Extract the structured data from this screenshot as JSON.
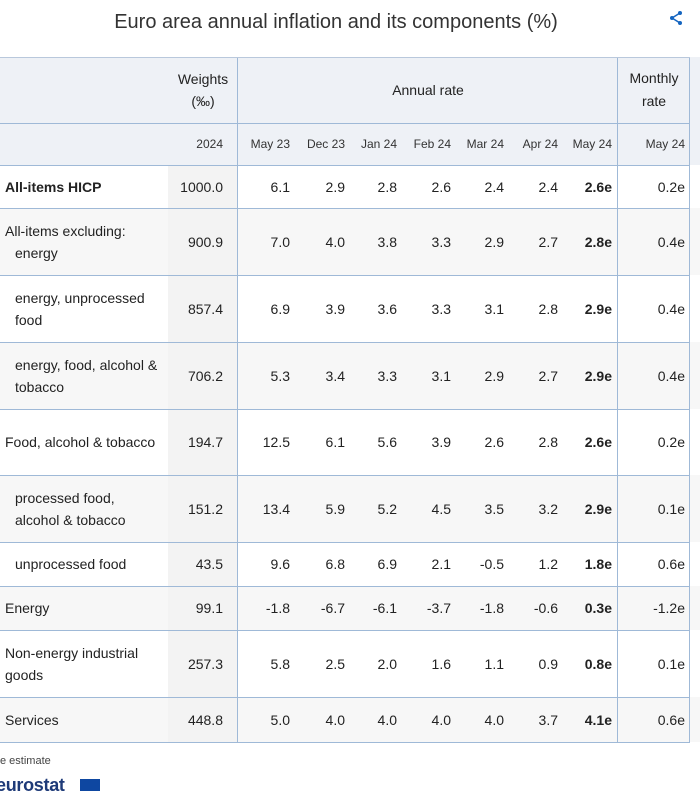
{
  "title": "Euro area annual inflation and its components (%)",
  "icons": {
    "share": "share-icon"
  },
  "colors": {
    "header_bg": "#eef1f6",
    "weights_bg": "#f3f3f3",
    "stripe_bg": "#f7f7f7",
    "border": "#9fb9d7",
    "text": "#222222"
  },
  "header": {
    "weights_label": "Weights",
    "weights_unit": "(‰)",
    "annual_rate_label": "Annual rate",
    "monthly_label": "Monthly",
    "monthly_label2": "rate",
    "weights_year": "2024",
    "annual_columns": [
      "May 23",
      "Dec 23",
      "Jan 24",
      "Feb 24",
      "Mar 24",
      "Apr 24",
      "May 24"
    ],
    "monthly_column": "May 24"
  },
  "footnote": "e estimate",
  "logo_text": "eurostat",
  "chart_data": {
    "type": "table",
    "title": "Euro area annual inflation and its components (%)",
    "columns": [
      "Weights (‰) 2024",
      "May 23",
      "Dec 23",
      "Jan 24",
      "Feb 24",
      "Mar 24",
      "Apr 24",
      "May 24",
      "Monthly rate May 24"
    ],
    "rows": [
      {
        "label": "All-items HICP",
        "weight": "1000.0",
        "annual": [
          "6.1",
          "2.9",
          "2.8",
          "2.6",
          "2.4",
          "2.4",
          "2.6e"
        ],
        "monthly": "0.2e"
      },
      {
        "label": "All-items excluding: energy",
        "weight": "900.9",
        "annual": [
          "7.0",
          "4.0",
          "3.8",
          "3.3",
          "2.9",
          "2.7",
          "2.8e"
        ],
        "monthly": "0.4e"
      },
      {
        "label": "energy, unprocessed food",
        "weight": "857.4",
        "annual": [
          "6.9",
          "3.9",
          "3.6",
          "3.3",
          "3.1",
          "2.8",
          "2.9e"
        ],
        "monthly": "0.4e"
      },
      {
        "label": "energy, food, alcohol & tobacco",
        "weight": "706.2",
        "annual": [
          "5.3",
          "3.4",
          "3.3",
          "3.1",
          "2.9",
          "2.7",
          "2.9e"
        ],
        "monthly": "0.4e"
      },
      {
        "label": "Food, alcohol & tobacco",
        "weight": "194.7",
        "annual": [
          "12.5",
          "6.1",
          "5.6",
          "3.9",
          "2.6",
          "2.8",
          "2.6e"
        ],
        "monthly": "0.2e"
      },
      {
        "label": "processed food, alcohol & tobacco",
        "weight": "151.2",
        "annual": [
          "13.4",
          "5.9",
          "5.2",
          "4.5",
          "3.5",
          "3.2",
          "2.9e"
        ],
        "monthly": "0.1e"
      },
      {
        "label": "unprocessed food",
        "weight": "43.5",
        "annual": [
          "9.6",
          "6.8",
          "6.9",
          "2.1",
          "-0.5",
          "1.2",
          "1.8e"
        ],
        "monthly": "0.6e"
      },
      {
        "label": "Energy",
        "weight": "99.1",
        "annual": [
          "-1.8",
          "-6.7",
          "-6.1",
          "-3.7",
          "-1.8",
          "-0.6",
          "0.3e"
        ],
        "monthly": "-1.2e"
      },
      {
        "label": "Non-energy industrial goods",
        "weight": "257.3",
        "annual": [
          "5.8",
          "2.5",
          "2.0",
          "1.6",
          "1.1",
          "0.9",
          "0.8e"
        ],
        "monthly": "0.1e"
      },
      {
        "label": "Services",
        "weight": "448.8",
        "annual": [
          "5.0",
          "4.0",
          "4.0",
          "4.0",
          "4.0",
          "3.7",
          "4.1e"
        ],
        "monthly": "0.6e"
      }
    ]
  }
}
